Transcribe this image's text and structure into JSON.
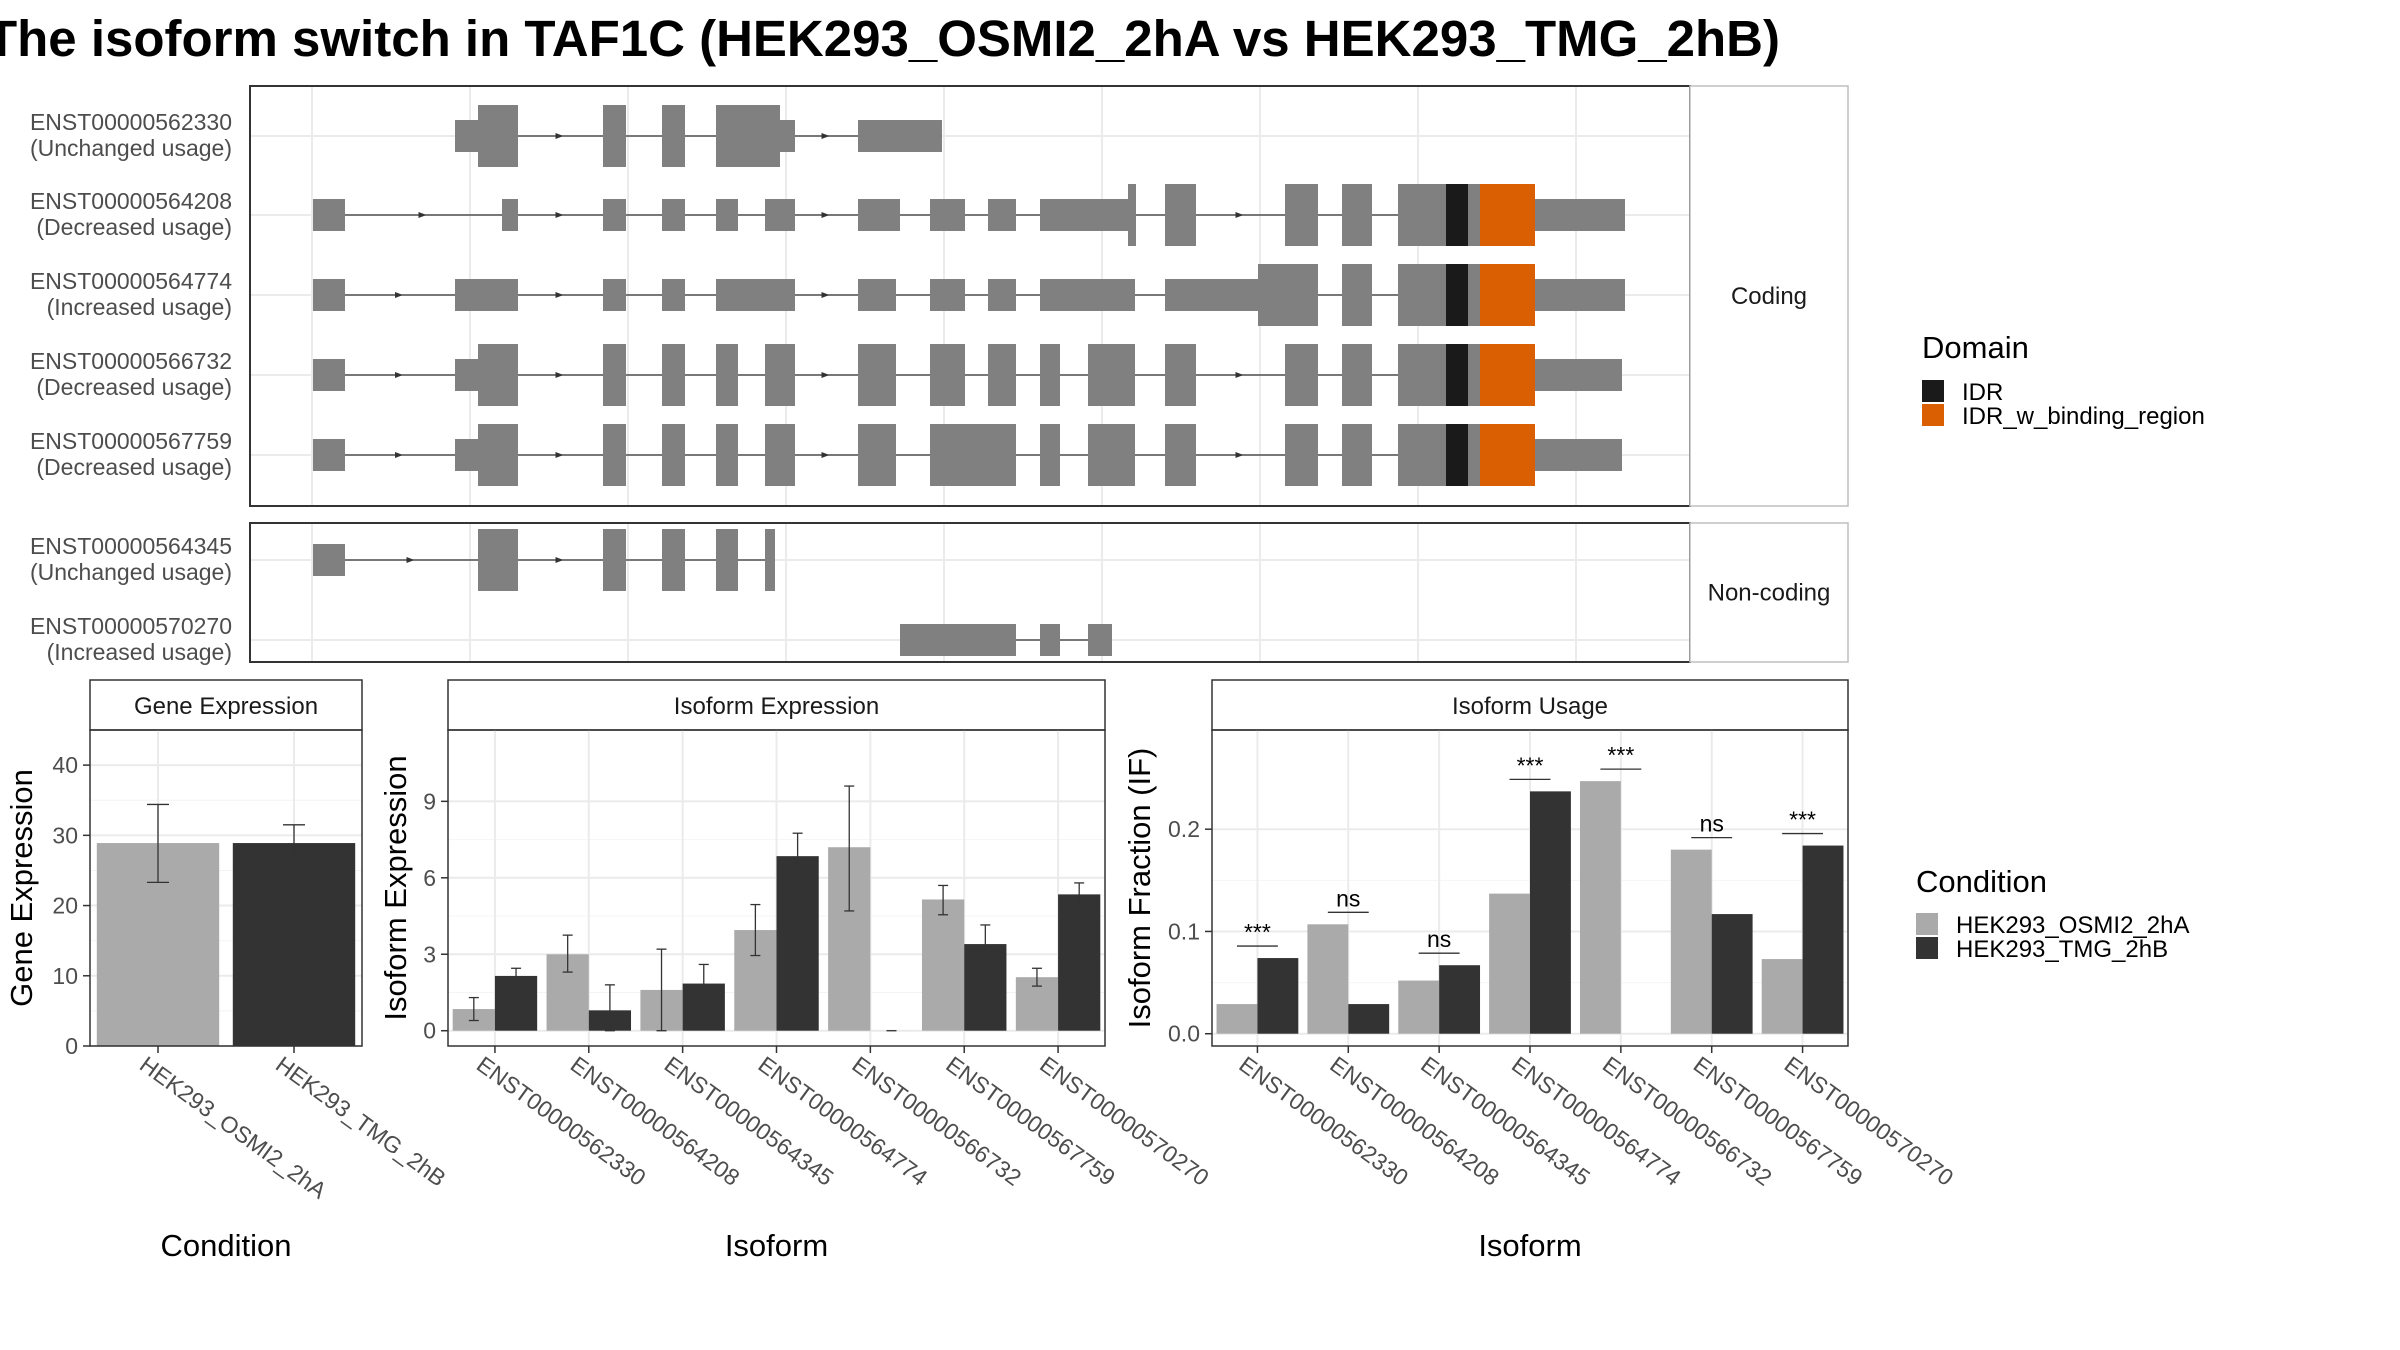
{
  "title": "The isoform switch in TAF1C (HEK293_OSMI2_2hA vs HEK293_TMG_2hB)",
  "colors": {
    "exon": "#808080",
    "idr": "#1a1a1a",
    "idr_binding": "#d95f02",
    "cond1": "#aaaaaa",
    "cond2": "#333333",
    "grid": "#ebebeb"
  },
  "isoform_panels": [
    {
      "label": "Coding",
      "rows": [
        {
          "id": "ENST00000562330",
          "usage": "(Unchanged usage)"
        },
        {
          "id": "ENST00000564208",
          "usage": "(Decreased usage)"
        },
        {
          "id": "ENST00000564774",
          "usage": "(Increased usage)"
        },
        {
          "id": "ENST00000566732",
          "usage": "(Decreased usage)"
        },
        {
          "id": "ENST00000567759",
          "usage": "(Decreased usage)"
        }
      ]
    },
    {
      "label": "Non-coding",
      "rows": [
        {
          "id": "ENST00000564345",
          "usage": "(Unchanged usage)"
        },
        {
          "id": "ENST00000570270",
          "usage": "(Increased usage)"
        }
      ]
    }
  ],
  "legend_domain": {
    "title": "Domain",
    "items": [
      "IDR",
      "IDR_w_binding_region"
    ]
  },
  "legend_condition": {
    "title": "Condition",
    "items": [
      "HEK293_OSMI2_2hA",
      "HEK293_TMG_2hB"
    ]
  },
  "chart_data": [
    {
      "type": "bar",
      "title": "Gene Expression",
      "xlabel": "Condition",
      "ylabel": "Gene Expression",
      "categories": [
        "HEK293_OSMI2_2hA",
        "HEK293_TMG_2hB"
      ],
      "values": [
        28.9,
        28.9
      ],
      "errors": [
        [
          23.3,
          34.4
        ],
        [
          26.3,
          31.5
        ]
      ],
      "ylim": [
        0,
        45
      ],
      "yticks": [
        0,
        10,
        20,
        30,
        40
      ]
    },
    {
      "type": "bar",
      "title": "Isoform Expression",
      "xlabel": "Isoform",
      "ylabel": "Isoform Expression",
      "categories": [
        "ENST00000562330",
        "ENST00000564208",
        "ENST00000564345",
        "ENST00000564774",
        "ENST00000566732",
        "ENST00000567759",
        "ENST00000570270"
      ],
      "series": [
        {
          "name": "HEK293_OSMI2_2hA",
          "values": [
            0.85,
            3.0,
            1.6,
            3.95,
            7.2,
            5.15,
            2.1
          ],
          "errors": [
            [
              0.4,
              1.3
            ],
            [
              2.3,
              3.75
            ],
            [
              0.0,
              3.2
            ],
            [
              2.95,
              4.95
            ],
            [
              4.7,
              9.6
            ],
            [
              4.55,
              5.7
            ],
            [
              1.75,
              2.45
            ]
          ]
        },
        {
          "name": "HEK293_TMG_2hB",
          "values": [
            2.15,
            0.8,
            1.85,
            6.85,
            0.0,
            3.4,
            5.35
          ],
          "errors": [
            [
              1.85,
              2.45
            ],
            [
              0.0,
              1.8
            ],
            [
              1.15,
              2.6
            ],
            [
              5.9,
              7.75
            ],
            [
              0.0,
              0.0
            ],
            [
              2.6,
              4.15
            ],
            [
              4.85,
              5.8
            ]
          ]
        }
      ],
      "ylim": [
        -0.6,
        11.8
      ],
      "yticks": [
        0,
        3,
        6,
        9
      ]
    },
    {
      "type": "bar",
      "title": "Isoform Usage",
      "xlabel": "Isoform",
      "ylabel": "Isoform Fraction (IF)",
      "categories": [
        "ENST00000562330",
        "ENST00000564208",
        "ENST00000564345",
        "ENST00000564774",
        "ENST00000566732",
        "ENST00000567759",
        "ENST00000570270"
      ],
      "series": [
        {
          "name": "HEK293_OSMI2_2hA",
          "values": [
            0.029,
            0.107,
            0.052,
            0.137,
            0.247,
            0.18,
            0.073
          ]
        },
        {
          "name": "HEK293_TMG_2hB",
          "values": [
            0.074,
            0.029,
            0.067,
            0.237,
            0.0,
            0.117,
            0.184
          ]
        }
      ],
      "significance": [
        "***",
        "ns",
        "ns",
        "***",
        "***",
        "ns",
        "***"
      ],
      "ylim": [
        -0.012,
        0.297
      ],
      "yticks": [
        0.0,
        0.1,
        0.2
      ],
      "ytick_labels": [
        "0.0",
        "0.1",
        "0.2"
      ]
    }
  ]
}
